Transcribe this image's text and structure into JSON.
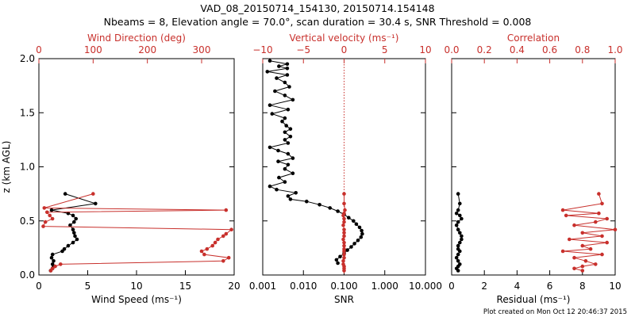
{
  "header": {
    "title_line1": "VAD_08_20150714_154130, 20150714.154148",
    "title_line2": "Nbeams = 8, Elevation angle = 70.0°, scan duration = 30.4 s, SNR Threshold = 0.008"
  },
  "footer": {
    "created": "Plot created on Mon Oct 12 20:46:37 2015"
  },
  "colors": {
    "primary": "#000000",
    "secondary": "#c8302c",
    "axis": "#000000"
  },
  "chart_data": [
    {
      "type": "line",
      "panel": "wind",
      "ylabel": "z (km AGL)",
      "ylim": [
        0,
        2
      ],
      "yticks": [
        "0.0",
        "0.5",
        "1.0",
        "1.5",
        "2.0"
      ],
      "bottom_axis": {
        "label": "Wind Speed (ms⁻¹)",
        "range": [
          0,
          20
        ],
        "ticks": [
          "0",
          "5",
          "10",
          "15",
          "20"
        ],
        "color": "#000000"
      },
      "top_axis": {
        "label": "Wind Direction (deg)",
        "range": [
          0,
          360
        ],
        "ticks": [
          "0",
          "100",
          "200",
          "300"
        ],
        "color": "#c8302c"
      },
      "series": [
        {
          "name": "Wind Speed (ms⁻¹)",
          "color": "#000000",
          "axis": "bottom",
          "x": [
            2.7,
            5.8,
            1.3,
            3.0,
            3.5,
            3.8,
            3.6,
            3.2,
            3.5,
            3.6,
            3.7,
            3.9,
            3.5,
            3.0,
            2.6,
            2.4,
            1.4,
            1.3,
            1.5,
            1.4,
            1.5,
            1.4,
            1.2
          ],
          "y": [
            0.75,
            0.66,
            0.6,
            0.57,
            0.55,
            0.52,
            0.49,
            0.46,
            0.42,
            0.39,
            0.36,
            0.33,
            0.3,
            0.27,
            0.24,
            0.22,
            0.19,
            0.16,
            0.13,
            0.1,
            0.08,
            0.06,
            0.04
          ]
        },
        {
          "name": "Wind Direction (deg)",
          "color": "#c8302c",
          "axis": "top",
          "x": [
            100,
            10,
            345,
            15,
            20,
            25,
            12,
            8,
            355,
            345,
            340,
            330,
            325,
            320,
            310,
            300,
            305,
            350,
            340,
            40,
            30,
            25,
            22
          ],
          "y": [
            0.75,
            0.62,
            0.6,
            0.58,
            0.55,
            0.52,
            0.49,
            0.45,
            0.42,
            0.38,
            0.36,
            0.33,
            0.3,
            0.27,
            0.24,
            0.22,
            0.19,
            0.16,
            0.13,
            0.1,
            0.08,
            0.06,
            0.04
          ]
        }
      ]
    },
    {
      "type": "line",
      "panel": "snr",
      "ylim": [
        0,
        2
      ],
      "bottom_axis": {
        "label": "SNR",
        "scale": "log",
        "range": [
          0.001,
          10
        ],
        "ticks": [
          "0.001",
          "0.010",
          "0.100",
          "1.000",
          "10.000"
        ],
        "color": "#000000"
      },
      "top_axis": {
        "label": "Vertical velocity (ms⁻¹)",
        "range": [
          -10,
          10
        ],
        "ticks": [
          "−10",
          "−5",
          "0",
          "5",
          "10"
        ],
        "color": "#c8302c"
      },
      "reference_line": {
        "axis": "top",
        "value": 0,
        "style": "dotted",
        "color": "#c8302c"
      },
      "series": [
        {
          "name": "SNR",
          "color": "#000000",
          "axis": "bottom",
          "x": [
            0.0015,
            0.004,
            0.0025,
            0.004,
            0.0013,
            0.004,
            0.0022,
            0.0035,
            0.0045,
            0.002,
            0.0035,
            0.0055,
            0.0015,
            0.0042,
            0.0017,
            0.0035,
            0.003,
            0.0038,
            0.0048,
            0.0035,
            0.0048,
            0.0035,
            0.0042,
            0.0015,
            0.0024,
            0.0042,
            0.0055,
            0.0024,
            0.0042,
            0.0035,
            0.0055,
            0.0025,
            0.0035,
            0.0015,
            0.0022,
            0.0065,
            0.0042,
            0.0048,
            0.012,
            0.025,
            0.045,
            0.07,
            0.1,
            0.13,
            0.17,
            0.2,
            0.24,
            0.27,
            0.28,
            0.26,
            0.22,
            0.18,
            0.15,
            0.12,
            0.1,
            0.08,
            0.065,
            0.07
          ],
          "y": [
            1.98,
            1.95,
            1.93,
            1.91,
            1.88,
            1.85,
            1.82,
            1.78,
            1.74,
            1.7,
            1.66,
            1.62,
            1.57,
            1.53,
            1.49,
            1.45,
            1.42,
            1.38,
            1.35,
            1.32,
            1.28,
            1.25,
            1.22,
            1.18,
            1.15,
            1.12,
            1.08,
            1.05,
            1.02,
            0.98,
            0.94,
            0.9,
            0.86,
            0.82,
            0.79,
            0.76,
            0.73,
            0.7,
            0.68,
            0.65,
            0.62,
            0.59,
            0.56,
            0.53,
            0.5,
            0.47,
            0.44,
            0.41,
            0.38,
            0.35,
            0.32,
            0.29,
            0.26,
            0.23,
            0.2,
            0.17,
            0.14,
            0.11
          ]
        },
        {
          "name": "Vertical velocity (ms⁻¹)",
          "color": "#c8302c",
          "axis": "top",
          "x": [
            0.0,
            0.0,
            0.1,
            0.0,
            -0.1,
            0.0,
            0.0,
            -0.1,
            0.0,
            0.0,
            0.0,
            -0.1,
            0.0,
            0.0,
            0.0,
            0.0,
            0.0,
            0.0,
            -0.1,
            -0.1,
            0.0,
            0.0,
            0.0
          ],
          "y": [
            0.75,
            0.66,
            0.6,
            0.57,
            0.55,
            0.52,
            0.49,
            0.46,
            0.42,
            0.39,
            0.36,
            0.33,
            0.3,
            0.27,
            0.24,
            0.22,
            0.19,
            0.16,
            0.13,
            0.1,
            0.08,
            0.06,
            0.04
          ]
        }
      ]
    },
    {
      "type": "line",
      "panel": "residual",
      "ylim": [
        0,
        2
      ],
      "bottom_axis": {
        "label": "Residual (ms⁻¹)",
        "range": [
          0,
          10
        ],
        "ticks": [
          "0",
          "2",
          "4",
          "6",
          "8",
          "10"
        ],
        "color": "#000000"
      },
      "top_axis": {
        "label": "Correlation",
        "range": [
          0,
          1
        ],
        "ticks": [
          "0.0",
          "0.2",
          "0.4",
          "0.6",
          "0.8",
          "1.0"
        ],
        "color": "#c8302c"
      },
      "series": [
        {
          "name": "Residual (ms⁻¹)",
          "color": "#000000",
          "axis": "bottom",
          "x": [
            0.4,
            0.5,
            0.4,
            0.3,
            0.5,
            0.6,
            0.4,
            0.3,
            0.4,
            0.5,
            0.6,
            0.6,
            0.5,
            0.4,
            0.4,
            0.5,
            0.4,
            0.3,
            0.4,
            0.5,
            0.4,
            0.3,
            0.4
          ],
          "y": [
            0.75,
            0.66,
            0.6,
            0.57,
            0.55,
            0.52,
            0.49,
            0.46,
            0.42,
            0.39,
            0.36,
            0.33,
            0.3,
            0.27,
            0.24,
            0.22,
            0.19,
            0.16,
            0.13,
            0.1,
            0.08,
            0.06,
            0.04
          ]
        },
        {
          "name": "Correlation",
          "color": "#c8302c",
          "axis": "top",
          "x": [
            0.9,
            0.92,
            0.68,
            0.9,
            0.7,
            0.95,
            0.88,
            0.75,
            1.0,
            0.8,
            0.92,
            0.72,
            0.95,
            0.8,
            0.85,
            0.68,
            0.92,
            0.75,
            0.82,
            0.88,
            0.8,
            0.75,
            0.8
          ],
          "y": [
            0.75,
            0.66,
            0.6,
            0.57,
            0.55,
            0.52,
            0.49,
            0.46,
            0.42,
            0.39,
            0.36,
            0.33,
            0.3,
            0.27,
            0.24,
            0.22,
            0.19,
            0.16,
            0.13,
            0.1,
            0.08,
            0.06,
            0.04
          ]
        }
      ]
    }
  ]
}
